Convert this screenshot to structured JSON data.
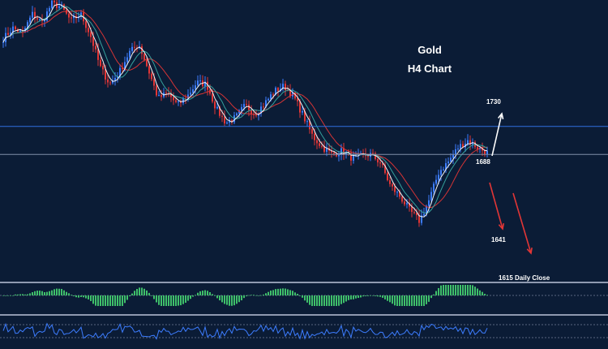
{
  "chart_data": {
    "type": "candlestick",
    "title": "Gold",
    "subtitle": "H4 Chart",
    "ylim": [
      1600,
      1760
    ],
    "levels": [
      {
        "label": "1688",
        "value": 1688,
        "color": "#2f6fe0"
      },
      {
        "label": "",
        "value": 1672,
        "color": "#7f8ea8"
      }
    ],
    "annotations": [
      {
        "text": "1730",
        "value": 1730,
        "color": "#3d7dff",
        "direction": "up"
      },
      {
        "text": "1641",
        "value": 1641,
        "color": "#ffffff",
        "direction": "down"
      },
      {
        "text": "1615 Daily Close",
        "value": 1615,
        "color": "#ffffff",
        "direction": "none"
      }
    ],
    "price_path": [
      1738,
      1744,
      1741,
      1752,
      1747,
      1758,
      1756,
      1748,
      1752,
      1740,
      1722,
      1712,
      1719,
      1730,
      1735,
      1720,
      1704,
      1707,
      1700,
      1705,
      1713,
      1712,
      1698,
      1690,
      1693,
      1700,
      1695,
      1701,
      1708,
      1711,
      1705,
      1694,
      1682,
      1676,
      1672,
      1674,
      1670,
      1671,
      1672,
      1667,
      1654,
      1648,
      1640,
      1634,
      1646,
      1662,
      1668,
      1676,
      1680,
      1676,
      1673
    ],
    "colors": {
      "up_candle": "#3d7dff",
      "down_candle": "#e23636",
      "ma_fast": "#ffffff",
      "ma_slow": "#e23636",
      "ma_mid": "#39a9a3",
      "histogram": "#3fbf6a",
      "osc_line": "#3d7dff"
    },
    "grid": false
  }
}
